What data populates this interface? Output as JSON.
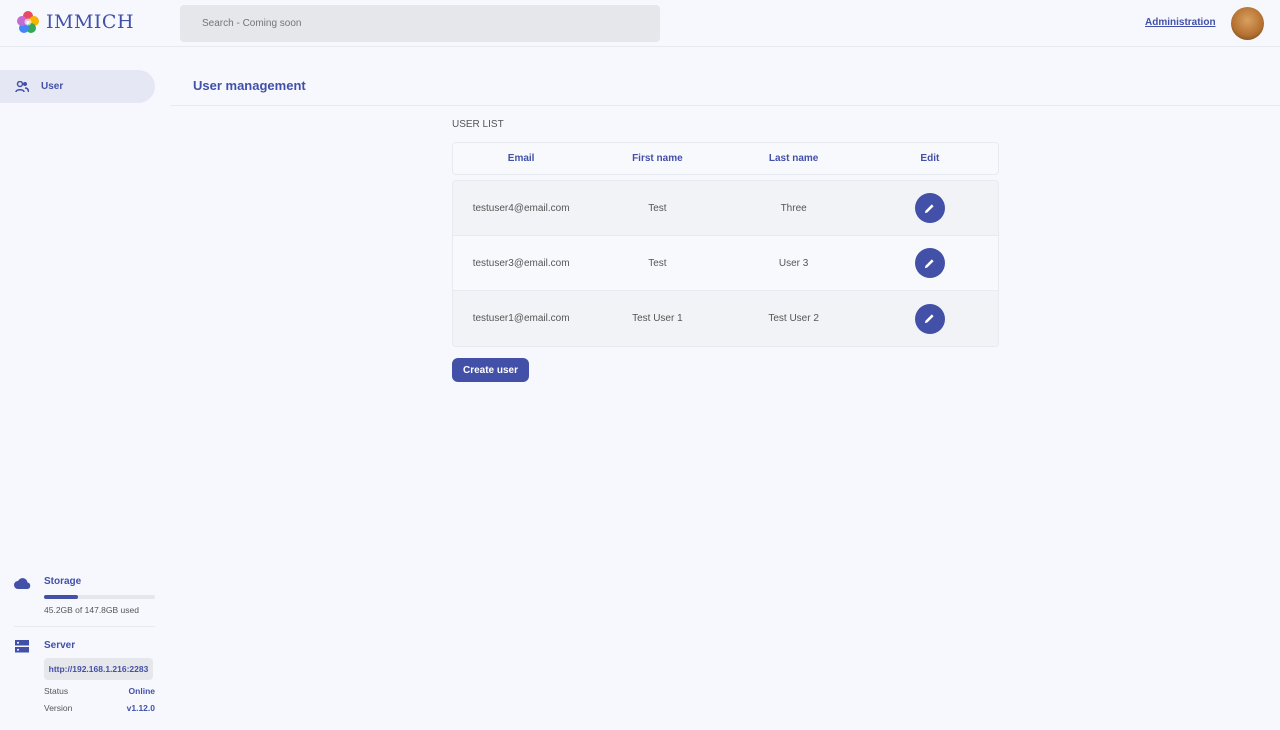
{
  "app": {
    "name": "IMMICH"
  },
  "header": {
    "search_placeholder": "Search - Coming soon",
    "admin_link": "Administration"
  },
  "sidebar": {
    "items": [
      {
        "label": "User",
        "icon": "users-icon"
      }
    ]
  },
  "main": {
    "title": "User management",
    "section_label": "USER LIST",
    "columns": [
      "Email",
      "First name",
      "Last name",
      "Edit"
    ],
    "rows": [
      {
        "email": "testuser4@email.com",
        "first": "Test",
        "last": "Three"
      },
      {
        "email": "testuser3@email.com",
        "first": "Test",
        "last": "User 3"
      },
      {
        "email": "testuser1@email.com",
        "first": "Test User 1",
        "last": "Test User 2"
      }
    ],
    "create_label": "Create user"
  },
  "storage": {
    "title": "Storage",
    "usage": "45.2GB of 147.8GB used",
    "used_fraction": 0.306
  },
  "server": {
    "title": "Server",
    "url": "http://192.168.1.216:2283",
    "status_label": "Status",
    "status": "Online",
    "version_label": "Version",
    "version": "v1.12.0"
  },
  "colors": {
    "accent": "#4250a8",
    "background": "#f6f8fe"
  }
}
